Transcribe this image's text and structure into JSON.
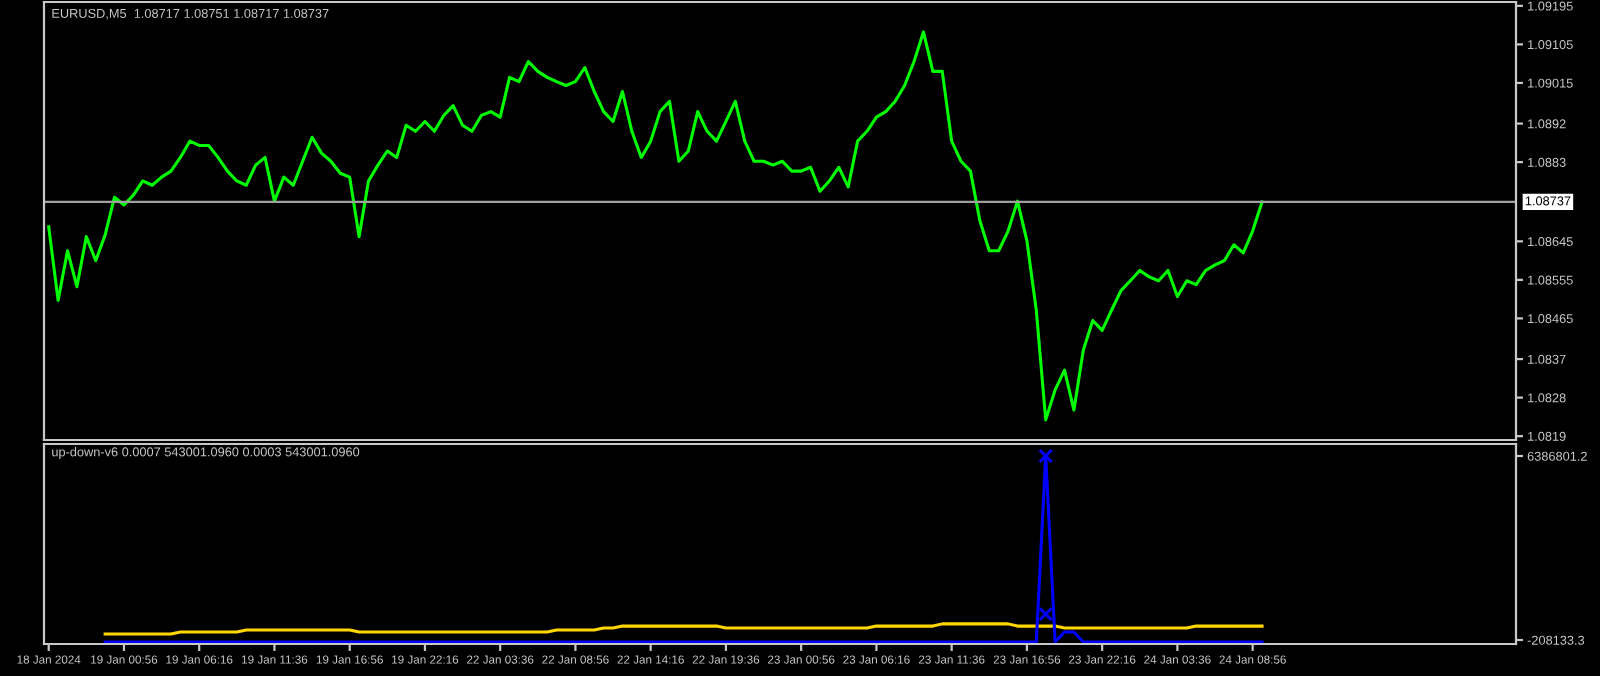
{
  "chart_data": [
    {
      "type": "line",
      "title": "EURUSD,M5  1.08717 1.08751 1.08717 1.08737",
      "tick_labels": "y",
      "grid": false,
      "legend": false,
      "ylim": [
        1.08181,
        1.09204
      ],
      "yticks": [
        1.09195,
        1.09105,
        1.09015,
        1.0892,
        1.0883,
        1.08645,
        1.08555,
        1.08465,
        1.0837,
        1.0828,
        1.0819
      ],
      "ref_lines": [
        {
          "axis": "y",
          "value": 1.08737,
          "label": "1.08737",
          "color": "#a0a0a0"
        }
      ],
      "categories": [
        null,
        null,
        null,
        null,
        null,
        null,
        null,
        null,
        null,
        null,
        null,
        null,
        null,
        null,
        null,
        null,
        null,
        null,
        null,
        null,
        null,
        null,
        null,
        null,
        null,
        null,
        null,
        null,
        null,
        null,
        null,
        null,
        null,
        null,
        null,
        null,
        null,
        null,
        null,
        null,
        null,
        null,
        null,
        null,
        null,
        null,
        null,
        null,
        null,
        null,
        null,
        null,
        null,
        null,
        null,
        null,
        null,
        null,
        null,
        null,
        null,
        null,
        null,
        null,
        null,
        null,
        null,
        null,
        null,
        null,
        null,
        null,
        null,
        null,
        null,
        null,
        null,
        null,
        null,
        null,
        null,
        null,
        null,
        null,
        null,
        null,
        null,
        null,
        null,
        null,
        null,
        null,
        null,
        null,
        null,
        null,
        null,
        null,
        null,
        null,
        null,
        null,
        null,
        null,
        null,
        null,
        null,
        null,
        null,
        null,
        null,
        null,
        null,
        null,
        null,
        null,
        null,
        null,
        null,
        null,
        null,
        null,
        null,
        null,
        null,
        null,
        null,
        null,
        null,
        null
      ],
      "series": [
        {
          "color": "#00ff00",
          "values": [
            1.08679,
            1.08507,
            1.08623,
            1.08539,
            1.08656,
            1.086,
            1.0866,
            1.08748,
            1.0873,
            1.08753,
            1.08786,
            1.08776,
            1.08795,
            1.08809,
            1.08841,
            1.08879,
            1.08869,
            1.08869,
            1.08841,
            1.08809,
            1.08786,
            1.08776,
            1.08823,
            1.08841,
            1.08739,
            1.08795,
            1.08776,
            1.08832,
            1.08888,
            1.08851,
            1.08832,
            1.08804,
            1.08795,
            1.08656,
            1.08786,
            1.08823,
            1.08856,
            1.08841,
            1.08916,
            1.08902,
            1.08925,
            1.08902,
            1.08939,
            1.08962,
            1.08916,
            1.08902,
            1.08939,
            1.08948,
            1.08935,
            1.09028,
            1.09018,
            1.09065,
            1.09042,
            1.09028,
            1.09018,
            1.09009,
            1.09018,
            1.09051,
            1.08995,
            1.08948,
            1.08925,
            1.08995,
            1.08902,
            1.08841,
            1.08879,
            1.08948,
            1.08972,
            1.08832,
            1.08856,
            1.08948,
            1.08902,
            1.08879,
            1.08925,
            1.08972,
            1.08879,
            1.08832,
            1.08832,
            1.08823,
            1.08832,
            1.08809,
            1.08809,
            1.08818,
            1.08762,
            1.08786,
            1.08818,
            1.08772,
            1.08879,
            1.08902,
            1.08935,
            1.08948,
            1.08972,
            1.09009,
            1.09065,
            1.09134,
            1.09042,
            1.09042,
            1.08879,
            1.08832,
            1.08809,
            1.08693,
            1.08623,
            1.08623,
            1.08669,
            1.08739,
            1.08646,
            1.08484,
            1.08228,
            1.08298,
            1.08344,
            1.08251,
            1.08391,
            1.0846,
            1.08437,
            1.08484,
            1.0853,
            1.08553,
            1.08577,
            1.08562,
            1.08553,
            1.08577,
            1.08516,
            1.08553,
            1.08544,
            1.08577,
            1.0859,
            1.086,
            1.08637,
            1.08618,
            1.08669,
            1.08737
          ]
        }
      ]
    },
    {
      "type": "line",
      "title": "up-down-v6 0.0007 543001.0960 0.0003 543001.0960",
      "grid": false,
      "legend": false,
      "ylim": [
        -351500,
        6817000
      ],
      "yticks": [
        6386801.2,
        -208133.3
      ],
      "categories": [
        "18 Jan 2024",
        null,
        null,
        null,
        null,
        null,
        null,
        null,
        "19 Jan 00:56",
        null,
        null,
        null,
        null,
        null,
        null,
        null,
        "19 Jan 06:16",
        null,
        null,
        null,
        null,
        null,
        null,
        null,
        "19 Jan 11:36",
        null,
        null,
        null,
        null,
        null,
        null,
        null,
        "19 Jan 16:56",
        null,
        null,
        null,
        null,
        null,
        null,
        null,
        "19 Jan 22:16",
        null,
        null,
        null,
        null,
        null,
        null,
        null,
        "22 Jan 03:36",
        null,
        null,
        null,
        null,
        null,
        null,
        null,
        "22 Jan 08:56",
        null,
        null,
        null,
        null,
        null,
        null,
        null,
        "22 Jan 14:16",
        null,
        null,
        null,
        null,
        null,
        null,
        null,
        "22 Jan 19:36",
        null,
        null,
        null,
        null,
        null,
        null,
        null,
        "23 Jan 00:56",
        null,
        null,
        null,
        null,
        null,
        null,
        null,
        "23 Jan 06:16",
        null,
        null,
        null,
        null,
        null,
        null,
        null,
        "23 Jan 11:36",
        null,
        null,
        null,
        null,
        null,
        null,
        null,
        "23 Jan 16:56",
        null,
        null,
        null,
        null,
        null,
        null,
        null,
        "23 Jan 22:16",
        null,
        null,
        null,
        null,
        null,
        null,
        null,
        "24 Jan 03:36",
        null,
        null,
        null,
        null,
        null,
        null,
        null,
        "24 Jan 08:56",
        null
      ],
      "series": [
        {
          "color": "#ffd700",
          "values": [
            null,
            null,
            null,
            null,
            null,
            null,
            10000,
            10000,
            10000,
            10000,
            10000,
            10000,
            10000,
            10000,
            80000,
            80000,
            80000,
            80000,
            80000,
            80000,
            80000,
            150000,
            150000,
            150000,
            150000,
            150000,
            150000,
            150000,
            150000,
            150000,
            150000,
            150000,
            150000,
            80000,
            80000,
            80000,
            80000,
            80000,
            80000,
            80000,
            80000,
            80000,
            80000,
            80000,
            80000,
            80000,
            80000,
            80000,
            80000,
            80000,
            80000,
            80000,
            80000,
            80000,
            150000,
            150000,
            150000,
            150000,
            150000,
            220000,
            220000,
            290000,
            290000,
            290000,
            290000,
            290000,
            290000,
            290000,
            290000,
            290000,
            290000,
            290000,
            220000,
            220000,
            220000,
            220000,
            220000,
            220000,
            220000,
            220000,
            220000,
            220000,
            220000,
            220000,
            220000,
            220000,
            220000,
            220000,
            290000,
            290000,
            290000,
            290000,
            290000,
            290000,
            290000,
            370000,
            370000,
            370000,
            370000,
            370000,
            370000,
            370000,
            370000,
            290000,
            290000,
            290000,
            290000,
            290000,
            220000,
            220000,
            220000,
            220000,
            220000,
            220000,
            220000,
            220000,
            220000,
            220000,
            220000,
            220000,
            220000,
            220000,
            290000,
            290000,
            290000,
            290000,
            290000,
            290000,
            290000,
            290000
          ]
        },
        {
          "color": "#0000ff",
          "values": [
            null,
            null,
            null,
            null,
            null,
            null,
            -280000,
            -280000,
            -280000,
            -280000,
            -280000,
            -280000,
            -280000,
            -280000,
            -280000,
            -280000,
            -280000,
            -280000,
            -280000,
            -280000,
            -280000,
            -280000,
            -280000,
            -280000,
            -280000,
            -280000,
            -280000,
            -280000,
            -280000,
            -280000,
            -280000,
            -280000,
            -280000,
            -280000,
            -280000,
            -280000,
            -280000,
            -280000,
            -280000,
            -280000,
            -280000,
            -280000,
            -280000,
            -280000,
            -280000,
            -280000,
            -280000,
            -280000,
            -280000,
            -280000,
            -280000,
            -280000,
            -280000,
            -280000,
            -280000,
            -280000,
            -280000,
            -280000,
            -280000,
            -280000,
            -280000,
            -280000,
            -280000,
            -280000,
            -280000,
            -280000,
            -280000,
            -280000,
            -280000,
            -280000,
            -280000,
            -280000,
            -280000,
            -280000,
            -280000,
            -280000,
            -280000,
            -280000,
            -280000,
            -280000,
            -280000,
            -280000,
            -280000,
            -280000,
            -280000,
            -280000,
            -280000,
            -280000,
            -280000,
            -280000,
            -280000,
            -280000,
            -280000,
            -280000,
            -280000,
            -280000,
            -280000,
            -280000,
            -280000,
            -280000,
            -280000,
            -280000,
            -280000,
            -280000,
            -280000,
            -280000,
            6390000,
            -280000,
            80000,
            80000,
            -280000,
            -280000,
            -280000,
            -280000,
            -280000,
            -280000,
            -280000,
            -280000,
            -280000,
            -280000,
            -280000,
            -280000,
            -280000,
            -280000,
            -280000,
            -280000,
            -280000,
            -280000,
            -280000,
            -280000
          ]
        },
        {
          "type": "scatter",
          "marker": "cross",
          "color": "#0000ff",
          "values": [
            null,
            null,
            null,
            null,
            null,
            null,
            null,
            null,
            null,
            null,
            null,
            null,
            null,
            null,
            null,
            null,
            null,
            null,
            null,
            null,
            null,
            null,
            null,
            null,
            null,
            null,
            null,
            null,
            null,
            null,
            null,
            null,
            null,
            null,
            null,
            null,
            null,
            null,
            null,
            null,
            null,
            null,
            null,
            null,
            null,
            null,
            null,
            null,
            null,
            null,
            null,
            null,
            null,
            null,
            null,
            null,
            null,
            null,
            null,
            null,
            null,
            null,
            null,
            null,
            null,
            null,
            null,
            null,
            null,
            null,
            null,
            null,
            null,
            null,
            null,
            null,
            null,
            null,
            null,
            null,
            null,
            null,
            null,
            null,
            null,
            null,
            null,
            null,
            null,
            null,
            null,
            null,
            null,
            null,
            null,
            null,
            null,
            null,
            null,
            null,
            null,
            null,
            null,
            null,
            null,
            null,
            6390000,
            null,
            null,
            null,
            null,
            null,
            null,
            null,
            null,
            null,
            null,
            null,
            null,
            null,
            null,
            null,
            null,
            null,
            null,
            null,
            null,
            null,
            null,
            null
          ]
        },
        {
          "type": "scatter",
          "marker": "cross",
          "color": "#0000ff",
          "values": [
            null,
            null,
            null,
            null,
            null,
            null,
            null,
            null,
            null,
            null,
            null,
            null,
            null,
            null,
            null,
            null,
            null,
            null,
            null,
            null,
            null,
            null,
            null,
            null,
            null,
            null,
            null,
            null,
            null,
            null,
            null,
            null,
            null,
            null,
            null,
            null,
            null,
            null,
            null,
            null,
            null,
            null,
            null,
            null,
            null,
            null,
            null,
            null,
            null,
            null,
            null,
            null,
            null,
            null,
            null,
            null,
            null,
            null,
            null,
            null,
            null,
            null,
            null,
            null,
            null,
            null,
            null,
            null,
            null,
            null,
            null,
            null,
            null,
            null,
            null,
            null,
            null,
            null,
            null,
            null,
            null,
            null,
            null,
            null,
            null,
            null,
            null,
            null,
            null,
            null,
            null,
            null,
            null,
            null,
            null,
            null,
            null,
            null,
            null,
            null,
            null,
            null,
            null,
            null,
            null,
            null,
            720000,
            null,
            null,
            null,
            null,
            null,
            null,
            null,
            null,
            null,
            null,
            null,
            null,
            null,
            null,
            null,
            null,
            null,
            null,
            null,
            null,
            null,
            null,
            null
          ]
        }
      ]
    }
  ]
}
